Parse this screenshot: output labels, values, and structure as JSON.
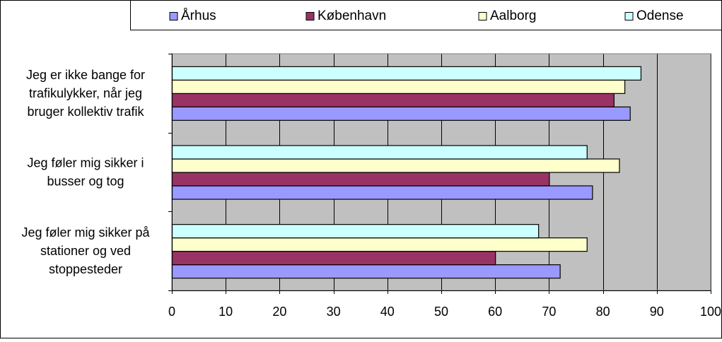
{
  "chart_data": {
    "type": "bar",
    "orientation": "horizontal",
    "categories": [
      [
        "Jeg er ikke bange for",
        "trafikulykker, når jeg",
        "bruger kollektiv trafik"
      ],
      [
        "Jeg føler mig sikker i",
        "busser og tog"
      ],
      [
        "Jeg føler mig sikker på",
        "stationer og ved",
        "stoppesteder"
      ]
    ],
    "series": [
      {
        "name": "Århus",
        "values": [
          85,
          78,
          72
        ]
      },
      {
        "name": "København",
        "values": [
          82,
          70,
          60
        ]
      },
      {
        "name": "Aalborg",
        "values": [
          84,
          83,
          77
        ]
      },
      {
        "name": "Odense",
        "values": [
          87,
          77,
          68
        ]
      }
    ],
    "xlim": [
      0,
      100
    ],
    "xticks": [
      0,
      10,
      20,
      30,
      40,
      50,
      60,
      70,
      80,
      90,
      100
    ],
    "grid": true,
    "legend_position": "top",
    "colors": {
      "Århus": "#9999ff",
      "København": "#993366",
      "Aalborg": "#ffffcc",
      "Odense": "#ccffff",
      "plot_background": "#c0c0c0",
      "gridline": "#000000"
    },
    "title": "",
    "xlabel": "",
    "ylabel": ""
  }
}
